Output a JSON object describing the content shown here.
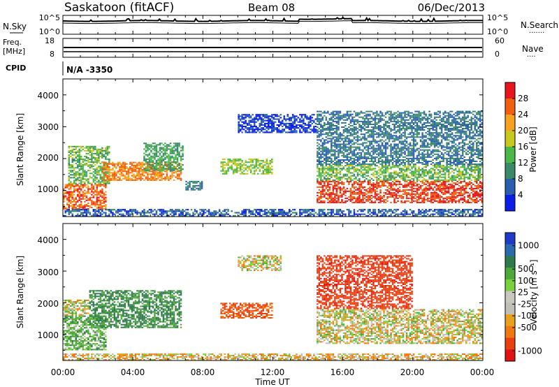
{
  "header": {
    "station": "Saskatoon (fitACF)",
    "beam": "Beam 08",
    "date": "06/Dec/2013"
  },
  "noise_panel": {
    "left_label": "N.Sky",
    "left_ticks": [
      "10^5",
      "10^0"
    ],
    "right_ticks": [
      "10^5",
      "10^0"
    ],
    "right_label": "N.Search",
    "right_dots": "·······"
  },
  "freq_panel": {
    "left_label_1": "Freq.",
    "left_label_2": "[MHz]",
    "left_ticks": [
      "18",
      "8"
    ],
    "right_ticks": [
      "60",
      "0"
    ],
    "right_label": "Nave",
    "right_dots": "····"
  },
  "cpid": {
    "label": "CPID",
    "value": "N/A -3350"
  },
  "x_axis": {
    "label": "Time UT",
    "ticks": [
      "00:00",
      "04:00",
      "08:00",
      "12:00",
      "16:00",
      "20:00",
      "00:00"
    ]
  },
  "power_panel": {
    "ylabel": "Slant Range [km]",
    "yticks": [
      "1000",
      "2000",
      "3000",
      "4000"
    ],
    "colorbar_label": "Power [dB]",
    "colorbar_ticks": [
      "4",
      "8",
      "12",
      "16",
      "20",
      "24",
      "28"
    ],
    "colorbar_colors": [
      "#0a1ee6",
      "#2a5fb0",
      "#3a8a6a",
      "#4db84a",
      "#c8c820",
      "#f7a21e",
      "#f06010",
      "#e8141e"
    ]
  },
  "velocity_panel": {
    "ylabel": "Slant Range [km]",
    "yticks": [
      "1000",
      "2000",
      "3000",
      "4000"
    ],
    "colorbar_label": "Velocity [m s⁻¹]",
    "colorbar_ticks": [
      "1000",
      "500",
      "100",
      "25",
      "-25",
      "-100",
      "-500",
      "-1000"
    ],
    "colorbar_colors": [
      "#1e3cc8",
      "#2a6ab0",
      "#2f7a4a",
      "#4ea83a",
      "#7cd040",
      "#c8c8c0",
      "#c0c0b8",
      "#e8a020",
      "#f07810",
      "#e84010",
      "#e01414"
    ]
  },
  "chart_data": [
    {
      "type": "heatmap",
      "title": "Power",
      "x_range_hours": [
        0,
        24
      ],
      "y_range_km": [
        180,
        4500
      ],
      "colorbar_range_db": [
        0,
        32
      ],
      "regions": [
        {
          "t0": 0.0,
          "t1": 2.5,
          "r0": 400,
          "r1": 1200,
          "power": 26
        },
        {
          "t0": 0.3,
          "t1": 2.7,
          "r0": 1200,
          "r1": 2400,
          "power": 14
        },
        {
          "t0": 2.2,
          "t1": 6.8,
          "r0": 1300,
          "r1": 1900,
          "power": 24
        },
        {
          "t0": 4.6,
          "t1": 6.9,
          "r0": 1600,
          "r1": 2500,
          "power": 12
        },
        {
          "t0": 7.0,
          "t1": 8.0,
          "r0": 1000,
          "r1": 1300,
          "power": 8
        },
        {
          "t0": 9.0,
          "t1": 12.0,
          "r0": 1500,
          "r1": 2000,
          "power": 16
        },
        {
          "t0": 10.0,
          "t1": 14.5,
          "r0": 2800,
          "r1": 3400,
          "power": 4
        },
        {
          "t0": 14.5,
          "t1": 24.0,
          "r0": 600,
          "r1": 1300,
          "power": 28
        },
        {
          "t0": 14.5,
          "t1": 24.0,
          "r0": 1300,
          "r1": 1800,
          "power": 14
        },
        {
          "t0": 14.5,
          "t1": 24.0,
          "r0": 1800,
          "r1": 3500,
          "power": 8
        },
        {
          "t0": 0.0,
          "t1": 24.0,
          "r0": 180,
          "r1": 420,
          "power": 6
        }
      ]
    },
    {
      "type": "heatmap",
      "title": "Velocity",
      "x_range_hours": [
        0,
        24
      ],
      "y_range_km": [
        180,
        4500
      ],
      "colorbar_range_ms": [
        -1000,
        1000
      ],
      "regions": [
        {
          "t0": 0.0,
          "t1": 2.5,
          "r0": 500,
          "r1": 1600,
          "velocity": 150
        },
        {
          "t0": 0.0,
          "t1": 1.5,
          "r0": 1600,
          "r1": 2100,
          "velocity": 0
        },
        {
          "t0": 1.5,
          "t1": 6.8,
          "r0": 1200,
          "r1": 2400,
          "velocity": 300
        },
        {
          "t0": 9.0,
          "t1": 12.0,
          "r0": 1500,
          "r1": 2000,
          "velocity": -300
        },
        {
          "t0": 10.0,
          "t1": 12.5,
          "r0": 3000,
          "r1": 3500,
          "velocity": 0
        },
        {
          "t0": 14.5,
          "t1": 24.0,
          "r0": 700,
          "r1": 1800,
          "velocity": 0
        },
        {
          "t0": 14.5,
          "t1": 20.0,
          "r0": 1800,
          "r1": 3500,
          "velocity": -400
        },
        {
          "t0": 0.0,
          "t1": 24.0,
          "r0": 180,
          "r1": 400,
          "velocity": -50
        }
      ]
    }
  ]
}
